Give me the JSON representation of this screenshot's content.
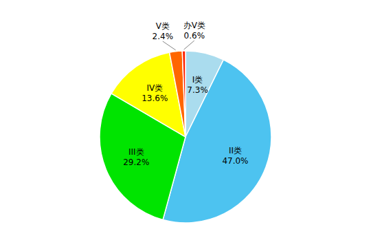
{
  "chart_data": {
    "type": "pie",
    "categories": [
      "I类",
      "II类",
      "III类",
      "IV类",
      "V类",
      "办V类"
    ],
    "values": [
      7.3,
      47.0,
      29.2,
      13.6,
      2.4,
      0.6
    ],
    "value_labels": [
      "7.3%",
      "47.0%",
      "29.2%",
      "13.6%",
      "2.4%",
      "0.6%"
    ],
    "colors": [
      "#aadcee",
      "#4dc3f0",
      "#00e400",
      "#ffff00",
      "#ff6600",
      "#ff2200"
    ],
    "data_labels": true
  }
}
